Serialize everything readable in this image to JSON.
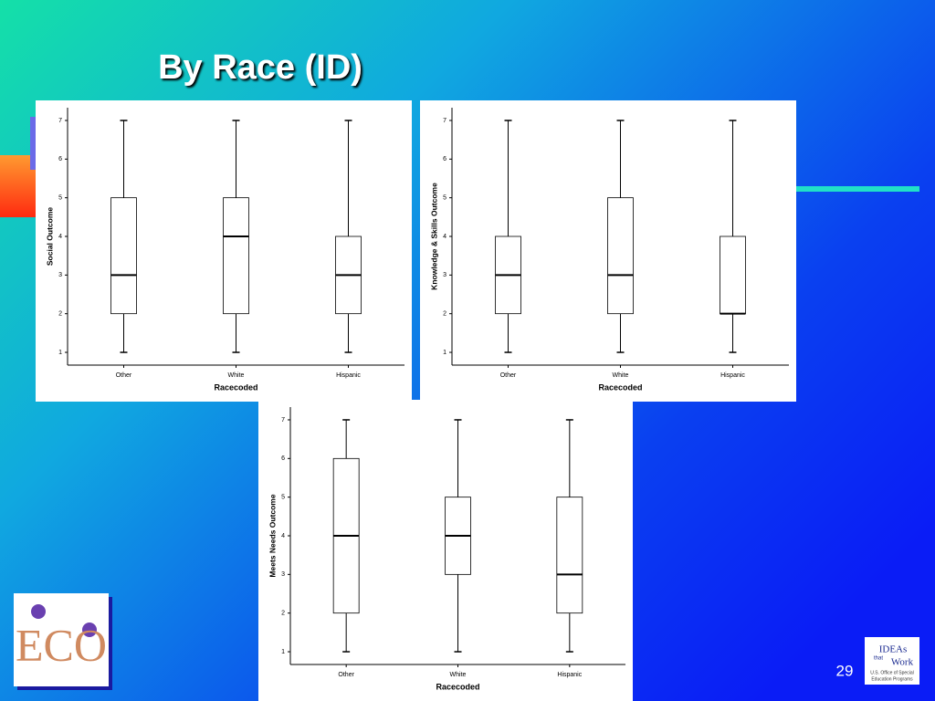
{
  "slide": {
    "title": "By Race (ID)",
    "page_number": "29",
    "logo_left": "ECO",
    "logo_right": [
      "IDEAs",
      "that",
      "Work",
      "U.S. Office of Special",
      "Education Programs"
    ]
  },
  "chart_data": [
    {
      "type": "box",
      "y_label": "Social Outcome",
      "x_label": "Racecoded",
      "categories": [
        "Other",
        "White",
        "Hispanic"
      ],
      "min": [
        1,
        1,
        1
      ],
      "q1": [
        2,
        2,
        2
      ],
      "median": [
        3,
        4,
        3
      ],
      "q3": [
        5,
        5,
        4
      ],
      "max": [
        7,
        7,
        7
      ],
      "ylim": [
        0.67,
        7.33
      ],
      "yticks": [
        1,
        2,
        3,
        4,
        5,
        6,
        7
      ]
    },
    {
      "type": "box",
      "y_label": "Knowledge & Skills Outcome",
      "x_label": "Racecoded",
      "categories": [
        "Other",
        "White",
        "Hispanic"
      ],
      "min": [
        1,
        1,
        1
      ],
      "q1": [
        2,
        2,
        2
      ],
      "median": [
        3,
        3,
        2
      ],
      "q3": [
        4,
        5,
        4
      ],
      "max": [
        7,
        7,
        7
      ],
      "ylim": [
        0.67,
        7.33
      ],
      "yticks": [
        1,
        2,
        3,
        4,
        5,
        6,
        7
      ]
    },
    {
      "type": "box",
      "y_label": "Meets Needs Outcome",
      "x_label": "Racecoded",
      "categories": [
        "Other",
        "White",
        "Hispanic"
      ],
      "min": [
        1,
        1,
        1
      ],
      "q1": [
        2,
        3,
        2
      ],
      "median": [
        4,
        4,
        3
      ],
      "q3": [
        6,
        5,
        5
      ],
      "max": [
        7,
        7,
        7
      ],
      "ylim": [
        0.67,
        7.33
      ],
      "yticks": [
        1,
        2,
        3,
        4,
        5,
        6,
        7
      ]
    }
  ]
}
